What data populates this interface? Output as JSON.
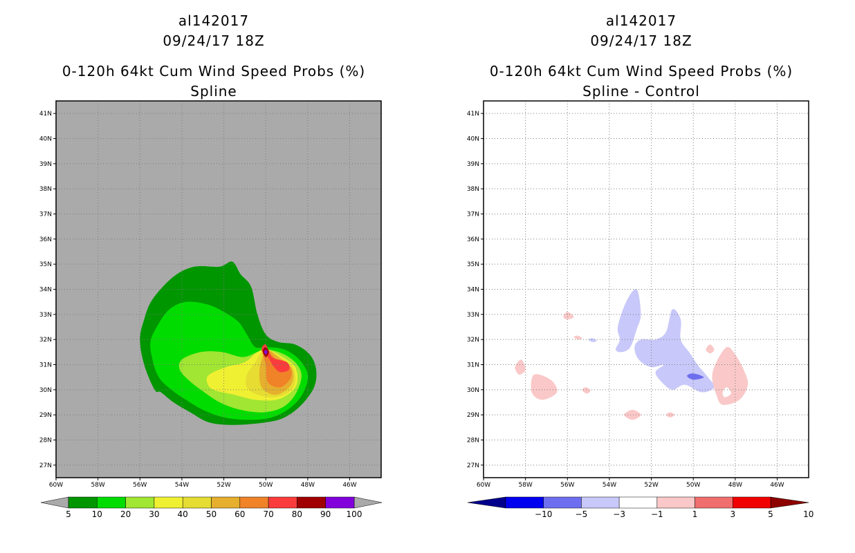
{
  "chart_data": [
    {
      "type": "heatmap",
      "storm_id": "al142017",
      "datetime": "09/24/17 18Z",
      "title": "0-120h 64kt Cum Wind Speed Probs (%)",
      "subtitle": "Spline",
      "xlim": [
        -60,
        -44.5
      ],
      "ylim": [
        26.5,
        41.5
      ],
      "x_ticks": [
        "60W",
        "58W",
        "56W",
        "54W",
        "52W",
        "50W",
        "48W",
        "46W"
      ],
      "y_ticks": [
        "27N",
        "28N",
        "29N",
        "30N",
        "31N",
        "32N",
        "33N",
        "34N",
        "35N",
        "36N",
        "37N",
        "38N",
        "39N",
        "40N",
        "41N"
      ],
      "background": "#aaaaaa",
      "colorbar": {
        "labels": [
          "5",
          "10",
          "20",
          "30",
          "40",
          "50",
          "60",
          "70",
          "80",
          "90",
          "100"
        ],
        "colors": [
          "#009600",
          "#00dc00",
          "#a0e632",
          "#f0f032",
          "#e6dc32",
          "#e6af2d",
          "#f08228",
          "#fa3c3c",
          "#a00000",
          "#8200dc"
        ]
      },
      "contours": [
        {
          "level": 5,
          "color": "#009600",
          "points": [
            [
              -55.8,
              32.8
            ],
            [
              -55.4,
              33.6
            ],
            [
              -54.4,
              34.5
            ],
            [
              -53.4,
              34.9
            ],
            [
              -52.2,
              34.9
            ],
            [
              -51.6,
              35.1
            ],
            [
              -51.2,
              34.6
            ],
            [
              -50.7,
              34.1
            ],
            [
              -50.4,
              33.0
            ],
            [
              -50.0,
              32.2
            ],
            [
              -49.4,
              31.9
            ],
            [
              -48.6,
              31.8
            ],
            [
              -47.9,
              31.4
            ],
            [
              -47.6,
              30.8
            ],
            [
              -47.7,
              30.1
            ],
            [
              -48.3,
              29.4
            ],
            [
              -49.1,
              28.9
            ],
            [
              -50.0,
              28.7
            ],
            [
              -51.5,
              28.6
            ],
            [
              -52.7,
              28.7
            ],
            [
              -53.6,
              29.1
            ],
            [
              -54.4,
              29.5
            ],
            [
              -55.0,
              29.9
            ],
            [
              -55.3,
              30.0
            ],
            [
              -55.8,
              31.0
            ],
            [
              -56.0,
              32.0
            ]
          ]
        },
        {
          "level": 10,
          "color": "#00dc00",
          "points": [
            [
              -55.2,
              32.5
            ],
            [
              -54.6,
              33.2
            ],
            [
              -53.8,
              33.5
            ],
            [
              -52.8,
              33.4
            ],
            [
              -52.0,
              33.1
            ],
            [
              -51.3,
              32.7
            ],
            [
              -50.9,
              32.2
            ],
            [
              -50.5,
              31.7
            ],
            [
              -49.9,
              31.7
            ],
            [
              -49.1,
              31.6
            ],
            [
              -48.4,
              31.2
            ],
            [
              -48.0,
              30.6
            ],
            [
              -48.2,
              29.9
            ],
            [
              -48.8,
              29.3
            ],
            [
              -49.7,
              28.9
            ],
            [
              -50.8,
              28.8
            ],
            [
              -52.0,
              28.9
            ],
            [
              -53.0,
              29.2
            ],
            [
              -53.8,
              29.6
            ],
            [
              -54.5,
              30.0
            ],
            [
              -55.1,
              30.5
            ],
            [
              -55.4,
              31.2
            ],
            [
              -55.5,
              31.9
            ]
          ]
        },
        {
          "level": 20,
          "color": "#a0e632",
          "points": [
            [
              -54.0,
              31.2
            ],
            [
              -53.1,
              31.5
            ],
            [
              -52.1,
              31.5
            ],
            [
              -51.1,
              31.3
            ],
            [
              -50.4,
              31.5
            ],
            [
              -49.9,
              31.6
            ],
            [
              -49.1,
              31.4
            ],
            [
              -48.5,
              31.0
            ],
            [
              -48.3,
              30.5
            ],
            [
              -48.6,
              29.8
            ],
            [
              -49.2,
              29.3
            ],
            [
              -50.1,
              29.1
            ],
            [
              -51.2,
              29.2
            ],
            [
              -52.2,
              29.5
            ],
            [
              -53.1,
              30.0
            ],
            [
              -53.7,
              30.4
            ],
            [
              -54.1,
              30.8
            ]
          ]
        },
        {
          "level": 30,
          "color": "#f0f032",
          "points": [
            [
              -52.7,
              30.6
            ],
            [
              -51.9,
              30.9
            ],
            [
              -51.0,
              31.1
            ],
            [
              -50.4,
              31.5
            ],
            [
              -49.9,
              31.6
            ],
            [
              -49.2,
              31.3
            ],
            [
              -48.6,
              30.9
            ],
            [
              -48.5,
              30.3
            ],
            [
              -48.8,
              29.9
            ],
            [
              -49.5,
              29.6
            ],
            [
              -50.5,
              29.6
            ],
            [
              -51.5,
              29.8
            ],
            [
              -52.5,
              30.0
            ],
            [
              -52.8,
              30.3
            ]
          ]
        },
        {
          "level": 40,
          "color": "#e6dc32",
          "points": [
            [
              -50.9,
              30.6
            ],
            [
              -50.5,
              31.1
            ],
            [
              -50.2,
              31.5
            ],
            [
              -49.9,
              31.6
            ],
            [
              -49.3,
              31.3
            ],
            [
              -48.7,
              30.9
            ],
            [
              -48.6,
              30.3
            ],
            [
              -48.9,
              29.9
            ],
            [
              -49.6,
              29.7
            ],
            [
              -50.4,
              29.8
            ],
            [
              -50.9,
              30.1
            ]
          ]
        },
        {
          "level": 50,
          "color": "#e6af2d",
          "points": [
            [
              -50.2,
              30.1
            ],
            [
              -50.3,
              30.8
            ],
            [
              -50.1,
              31.4
            ],
            [
              -49.9,
              31.6
            ],
            [
              -49.4,
              31.3
            ],
            [
              -48.8,
              30.9
            ],
            [
              -48.7,
              30.4
            ],
            [
              -49.0,
              30.0
            ],
            [
              -49.6,
              29.8
            ]
          ]
        },
        {
          "level": 60,
          "color": "#f08228",
          "points": [
            [
              -49.9,
              30.3
            ],
            [
              -50.0,
              31.0
            ],
            [
              -50.2,
              31.6
            ],
            [
              -50.0,
              31.7
            ],
            [
              -49.5,
              31.2
            ],
            [
              -48.9,
              31.0
            ],
            [
              -48.8,
              30.5
            ],
            [
              -49.3,
              30.1
            ]
          ]
        },
        {
          "level": 70,
          "color": "#fa3c3c",
          "points": [
            [
              -50.2,
              31.6
            ],
            [
              -50.0,
              31.8
            ],
            [
              -49.7,
              31.3
            ],
            [
              -49.0,
              31.1
            ],
            [
              -48.9,
              30.8
            ],
            [
              -49.3,
              30.7
            ],
            [
              -49.6,
              30.9
            ],
            [
              -49.9,
              31.3
            ]
          ]
        },
        {
          "level": 80,
          "color": "#a00000",
          "points": [
            [
              -50.15,
              31.55
            ],
            [
              -50.0,
              31.7
            ],
            [
              -49.85,
              31.5
            ],
            [
              -50.0,
              31.3
            ]
          ]
        },
        {
          "level": 90,
          "color": "#8200dc",
          "points": [
            [
              -50.08,
              31.5
            ],
            [
              -50.0,
              31.6
            ],
            [
              -49.92,
              31.5
            ],
            [
              -50.0,
              31.4
            ]
          ]
        }
      ]
    },
    {
      "type": "heatmap",
      "storm_id": "al142017",
      "datetime": "09/24/17 18Z",
      "title": "0-120h 64kt Cum Wind Speed Probs (%)",
      "subtitle": "Spline - Control",
      "xlim": [
        -60,
        -44.5
      ],
      "ylim": [
        26.5,
        41.5
      ],
      "x_ticks": [
        "60W",
        "58W",
        "56W",
        "54W",
        "52W",
        "50W",
        "48W",
        "46W"
      ],
      "y_ticks": [
        "27N",
        "28N",
        "29N",
        "30N",
        "31N",
        "32N",
        "33N",
        "34N",
        "35N",
        "36N",
        "37N",
        "38N",
        "39N",
        "40N",
        "41N"
      ],
      "background": "#ffffff",
      "colorbar": {
        "labels": [
          "-10",
          "-5",
          "-3",
          "-1",
          "1",
          "3",
          "5",
          "10"
        ],
        "colors": [
          "#00008c",
          "#0000f0",
          "#6e6ef0",
          "#c8c8fa",
          "#ffffff",
          "#fac8c8",
          "#f06e6e",
          "#f00000",
          "#8c0000"
        ]
      },
      "contours": [
        {
          "level": -1,
          "color": "#c8c8fa",
          "points": [
            [
              -53.6,
              32.5
            ],
            [
              -53.2,
              33.5
            ],
            [
              -52.7,
              34.0
            ],
            [
              -52.5,
              33.0
            ],
            [
              -52.7,
              32.4
            ],
            [
              -53.0,
              31.7
            ],
            [
              -53.4,
              31.5
            ],
            [
              -53.7,
              31.6
            ],
            [
              -53.5,
              32.0
            ]
          ]
        },
        {
          "level": -1,
          "color": "#c8c8fa",
          "points": [
            [
              -52.5,
              32.0
            ],
            [
              -51.8,
              32.0
            ],
            [
              -51.3,
              32.3
            ],
            [
              -51.0,
              33.2
            ],
            [
              -50.6,
              32.8
            ],
            [
              -50.6,
              32.0
            ],
            [
              -50.2,
              31.5
            ],
            [
              -49.8,
              31.0
            ],
            [
              -49.3,
              30.5
            ],
            [
              -49.0,
              30.1
            ],
            [
              -49.6,
              29.9
            ],
            [
              -50.4,
              30.2
            ],
            [
              -51.0,
              30.0
            ],
            [
              -51.5,
              30.3
            ],
            [
              -51.8,
              30.7
            ],
            [
              -51.4,
              31.0
            ],
            [
              -52.0,
              30.9
            ],
            [
              -52.6,
              31.2
            ],
            [
              -52.8,
              31.7
            ]
          ]
        },
        {
          "level": -3,
          "color": "#6e6ef0",
          "points": [
            [
              -50.3,
              30.55
            ],
            [
              -50.0,
              30.65
            ],
            [
              -49.5,
              30.5
            ],
            [
              -50.0,
              30.4
            ]
          ]
        },
        {
          "level": -1,
          "color": "#c8c8fa",
          "points": [
            [
              -55.0,
              32.0
            ],
            [
              -54.8,
              32.05
            ],
            [
              -54.6,
              31.95
            ],
            [
              -54.8,
              31.9
            ]
          ]
        },
        {
          "level": 1,
          "color": "#fac8c8",
          "points": [
            [
              -48.4,
              31.7
            ],
            [
              -48.0,
              31.4
            ],
            [
              -47.6,
              30.8
            ],
            [
              -47.4,
              30.2
            ],
            [
              -47.8,
              29.6
            ],
            [
              -48.6,
              29.4
            ],
            [
              -48.9,
              29.8
            ],
            [
              -49.1,
              30.5
            ],
            [
              -48.9,
              31.1
            ]
          ]
        },
        {
          "level": 1,
          "color": "#fac8c8",
          "points": [
            [
              -57.6,
              30.6
            ],
            [
              -56.8,
              30.4
            ],
            [
              -56.5,
              29.9
            ],
            [
              -57.2,
              29.6
            ],
            [
              -57.7,
              29.9
            ]
          ]
        },
        {
          "level": 1,
          "color": "#fac8c8",
          "points": [
            [
              -58.2,
              31.2
            ],
            [
              -58.0,
              30.8
            ],
            [
              -58.3,
              30.6
            ],
            [
              -58.5,
              30.9
            ]
          ]
        },
        {
          "level": 1,
          "color": "#fac8c8",
          "points": [
            [
              -56.2,
              32.9
            ],
            [
              -56.0,
              33.1
            ],
            [
              -55.7,
              32.9
            ],
            [
              -56.0,
              32.8
            ]
          ]
        },
        {
          "level": 1,
          "color": "#fac8c8",
          "points": [
            [
              -55.3,
              30.0
            ],
            [
              -55.1,
              30.1
            ],
            [
              -54.9,
              29.95
            ],
            [
              -55.1,
              29.85
            ]
          ]
        },
        {
          "level": 1,
          "color": "#fac8c8",
          "points": [
            [
              -53.3,
              29.0
            ],
            [
              -52.9,
              29.2
            ],
            [
              -52.5,
              29.0
            ],
            [
              -52.9,
              28.8
            ]
          ]
        },
        {
          "level": 1,
          "color": "#fac8c8",
          "points": [
            [
              -51.3,
              29.0
            ],
            [
              -51.1,
              29.1
            ],
            [
              -50.9,
              29.0
            ],
            [
              -51.1,
              28.9
            ]
          ]
        },
        {
          "level": 1,
          "color": "#fac8c8",
          "points": [
            [
              -49.4,
              31.6
            ],
            [
              -49.2,
              31.8
            ],
            [
              -49.0,
              31.6
            ],
            [
              -49.2,
              31.45
            ]
          ]
        },
        {
          "level": 1,
          "color": "#fac8c8",
          "points": [
            [
              -55.7,
              32.1
            ],
            [
              -55.5,
              32.15
            ],
            [
              -55.3,
              32.05
            ],
            [
              -55.5,
              32.0
            ]
          ]
        }
      ],
      "holes": [
        {
          "color": "#ffffff",
          "points": [
            [
              -48.4,
              30.1
            ],
            [
              -48.2,
              29.85
            ],
            [
              -48.5,
              29.7
            ],
            [
              -48.6,
              29.9
            ]
          ]
        }
      ]
    }
  ]
}
